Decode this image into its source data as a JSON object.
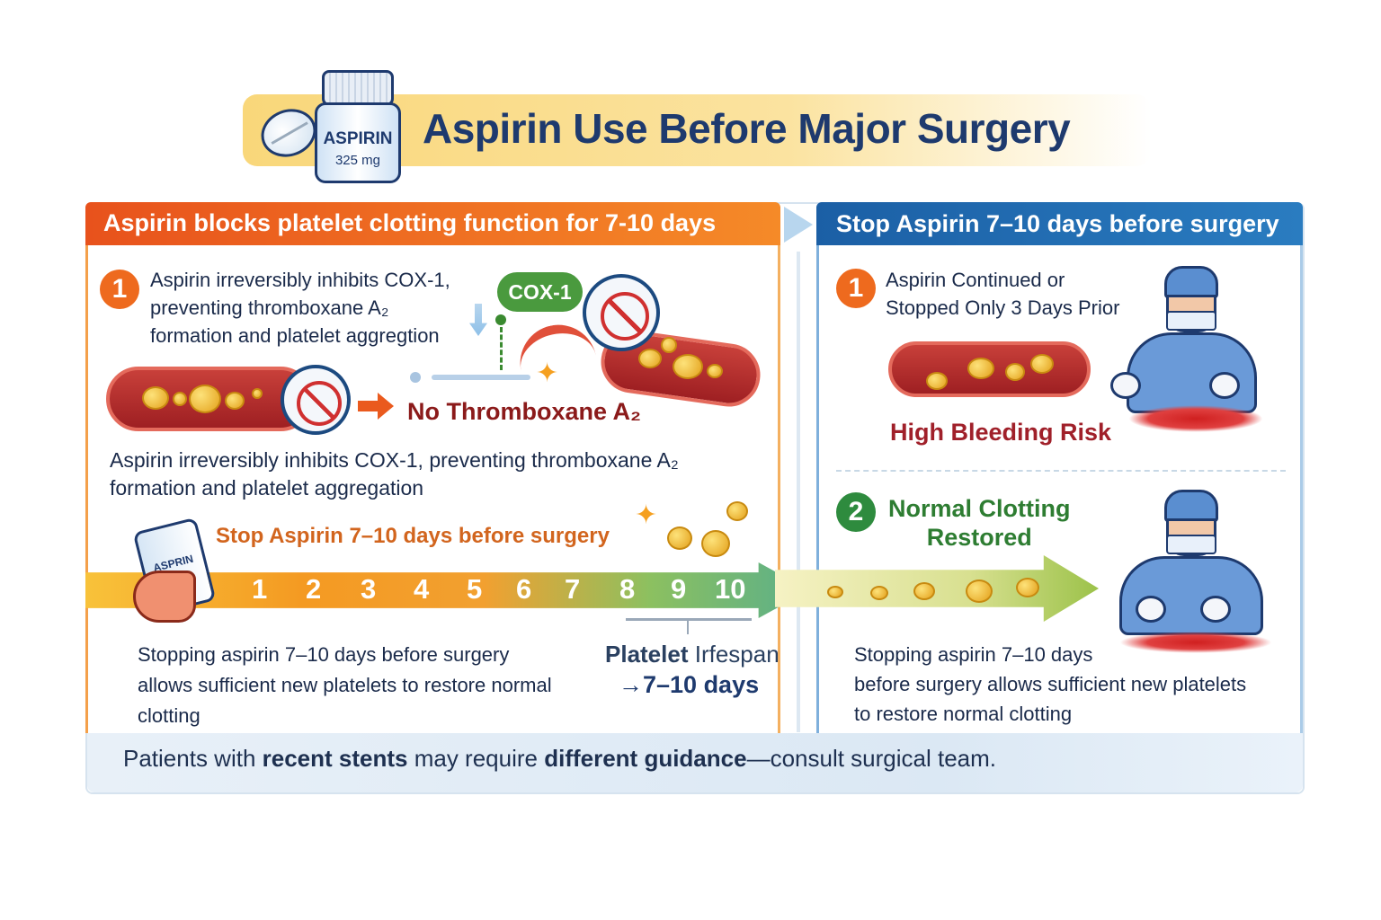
{
  "header": {
    "title": "Aspirin Use Before Major Surgery",
    "bottle_label": "ASPIRIN",
    "bottle_dose": "325 mg"
  },
  "left": {
    "heading": "Aspirin blocks platelet clotting function for 7-10 days",
    "step1_number": "1",
    "step1_lines": [
      "Aspirin irreversibly inhibits COX-1,",
      "preventing thromboxane A₂",
      "formation and platelet aggregtion"
    ],
    "cox_label": "COX-1",
    "no_thromboxane": "No Thromboxane A₂",
    "paragraph_lines": [
      "Aspirin irreversibly inhibits COX-1, preventing thromboxane A₂",
      "formation and platelet aggregation"
    ],
    "stop_label": "Stop Aspirin 7–10 days before surgery",
    "hand_bottle_label": "ASPRIN",
    "timeline_days": [
      "1",
      "2",
      "3",
      "4",
      "5",
      "6",
      "7",
      "8",
      "9",
      "10"
    ],
    "bottom_lines": [
      "Stopping aspirin 7–10 days before surgery",
      "allows sufficient new platelets to restore normal",
      "clotting"
    ],
    "lifespan_bold": "Platelet",
    "lifespan_rest": " Irfespan",
    "lifespan_value": "→7–10 days"
  },
  "right": {
    "heading": "Stop Aspirin 7–10 days before surgery",
    "step1_number": "1",
    "step1_lines": [
      "Aspirin Continued or",
      "Stopped Only 3 Days Prior"
    ],
    "risk": "High Bleeding Risk",
    "step2_number": "2",
    "step2_lines": [
      "Normal Clotting",
      "Restored"
    ],
    "bottom_lines": [
      "Stopping aspirin 7–10 days",
      "before surgery allows sufficient new platelets",
      "to restore normal clotting"
    ]
  },
  "footer": {
    "pre": "Patients with ",
    "b1": "recent stents",
    "mid": " may require ",
    "b2": "different guidance",
    "post": "—consult surgical team."
  },
  "colors": {
    "orange": "#ee6a1e",
    "blue": "#1f6fb2",
    "navy": "#1e3a6e",
    "red": "#a0202a",
    "green": "#2e7d32"
  }
}
